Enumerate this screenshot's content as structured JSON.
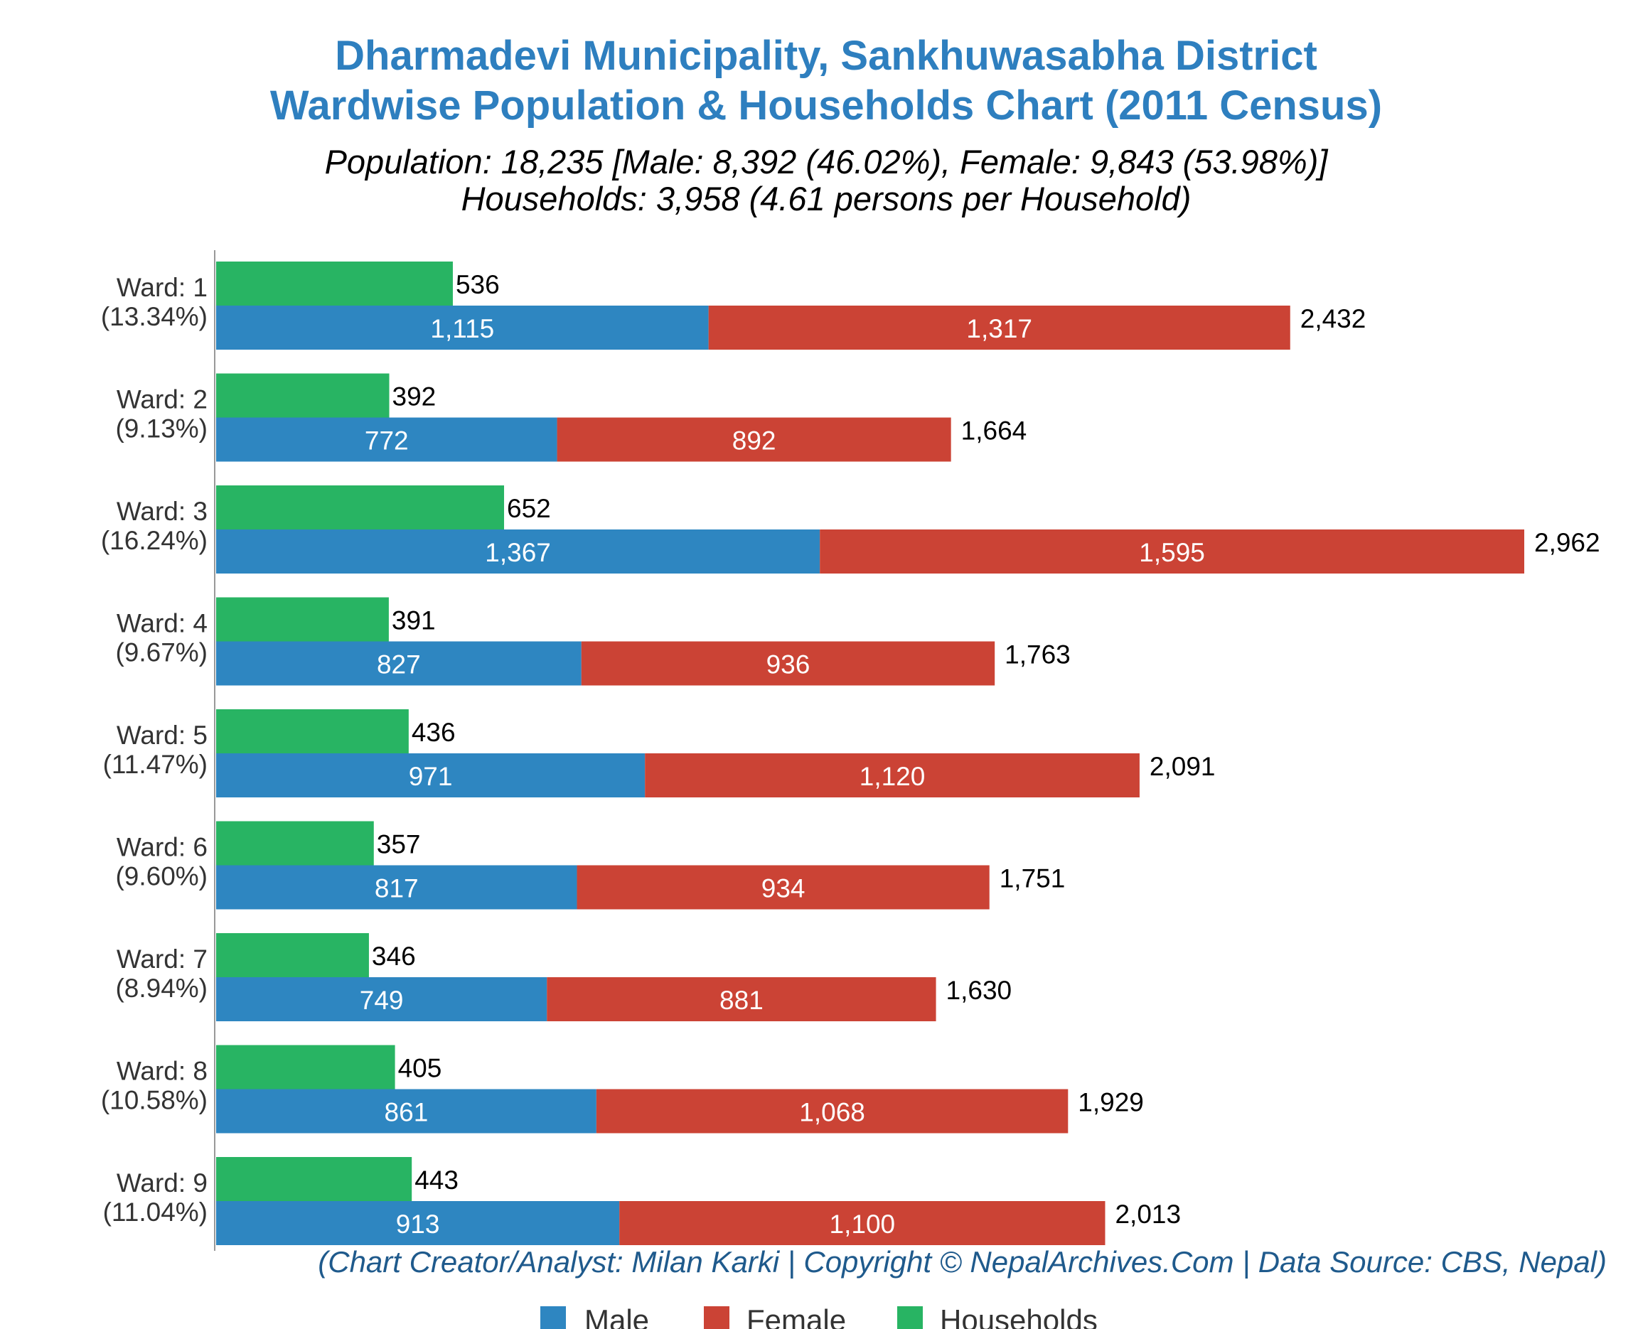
{
  "title_line1": "Dharmadevi Municipality, Sankhuwasabha District",
  "title_line2": "Wardwise Population & Households Chart (2011 Census)",
  "subtitle_line1": "Population: 18,235 [Male: 8,392 (46.02%), Female: 9,843 (53.98%)]",
  "subtitle_line2": "Households: 3,958 (4.61 persons per Household)",
  "credit": "(Chart Creator/Analyst: Milan Karki | Copyright © NepalArchives.Com | Data Source: CBS, Nepal)",
  "legend": {
    "male": "Male",
    "female": "Female",
    "households": "Households"
  },
  "colors": {
    "male": "#2e86c1",
    "female": "#cb4335",
    "households": "#28b463",
    "title": "#2e7fbf",
    "credit": "#1f5a8c"
  },
  "chart_data": {
    "type": "bar",
    "orientation": "horizontal",
    "stacked_series": [
      "Male",
      "Female"
    ],
    "categories": [
      "Ward: 1",
      "Ward: 2",
      "Ward: 3",
      "Ward: 4",
      "Ward: 5",
      "Ward: 6",
      "Ward: 7",
      "Ward: 8",
      "Ward: 9"
    ],
    "category_shares": [
      "(13.34%)",
      "(9.13%)",
      "(16.24%)",
      "(9.67%)",
      "(11.47%)",
      "(9.60%)",
      "(8.94%)",
      "(10.58%)",
      "(11.04%)"
    ],
    "series": [
      {
        "name": "Male",
        "values": [
          1115,
          772,
          1367,
          827,
          971,
          817,
          749,
          861,
          913
        ]
      },
      {
        "name": "Female",
        "values": [
          1317,
          892,
          1595,
          936,
          1120,
          934,
          881,
          1068,
          1100
        ]
      },
      {
        "name": "Households",
        "values": [
          536,
          392,
          652,
          391,
          436,
          357,
          346,
          405,
          443
        ]
      }
    ],
    "totals": [
      2432,
      1664,
      2962,
      1763,
      2091,
      1751,
      1630,
      1929,
      2013
    ],
    "xlim": [
      0,
      3000
    ],
    "grid": false,
    "legend_position": "bottom"
  }
}
